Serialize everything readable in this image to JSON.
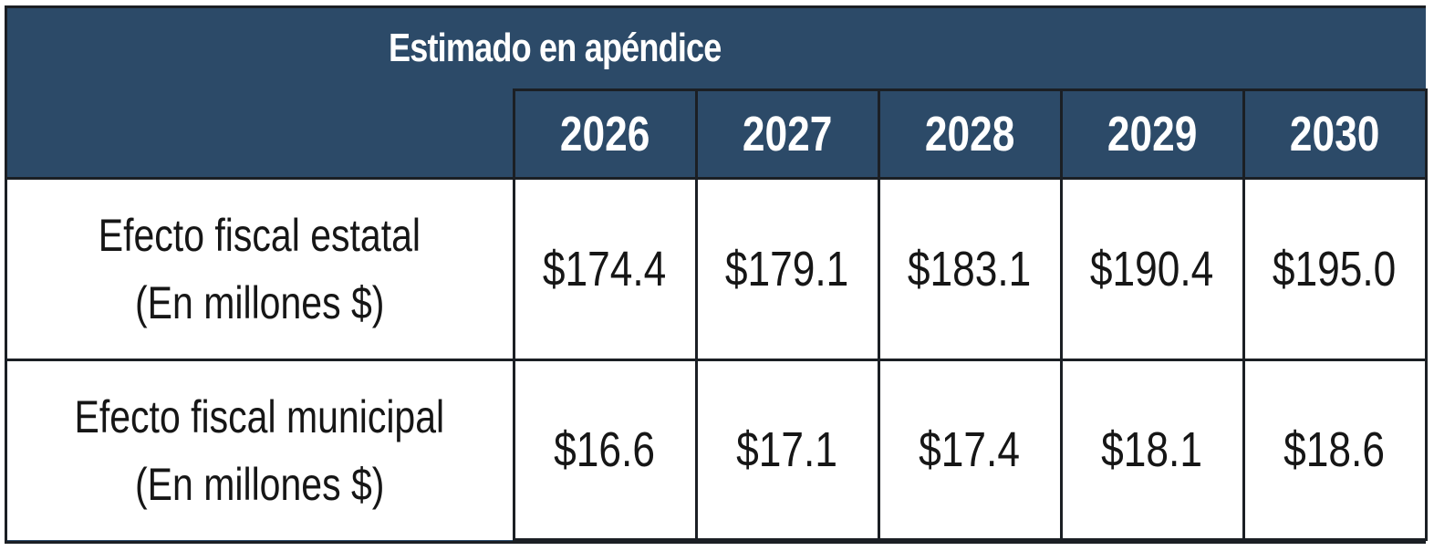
{
  "table": {
    "title": "Estimado en apéndice",
    "years": [
      "2026",
      "2027",
      "2028",
      "2029",
      "2030"
    ],
    "rows": [
      {
        "label_line1": "Efecto fiscal estatal",
        "label_line2": "(En millones $)",
        "values": [
          "$174.4",
          "$179.1",
          "$183.1",
          "$190.4",
          "$195.0"
        ]
      },
      {
        "label_line1": "Efecto fiscal municipal",
        "label_line2": "(En millones $)",
        "values": [
          "$16.6",
          "$17.1",
          "$17.4",
          "$18.1",
          "$18.6"
        ]
      }
    ]
  },
  "colors": {
    "header_bg": "#2c4a68",
    "border": "#1b1f24",
    "body_bg": "#ffffff",
    "header_text": "#ffffff",
    "body_text": "#161616"
  }
}
